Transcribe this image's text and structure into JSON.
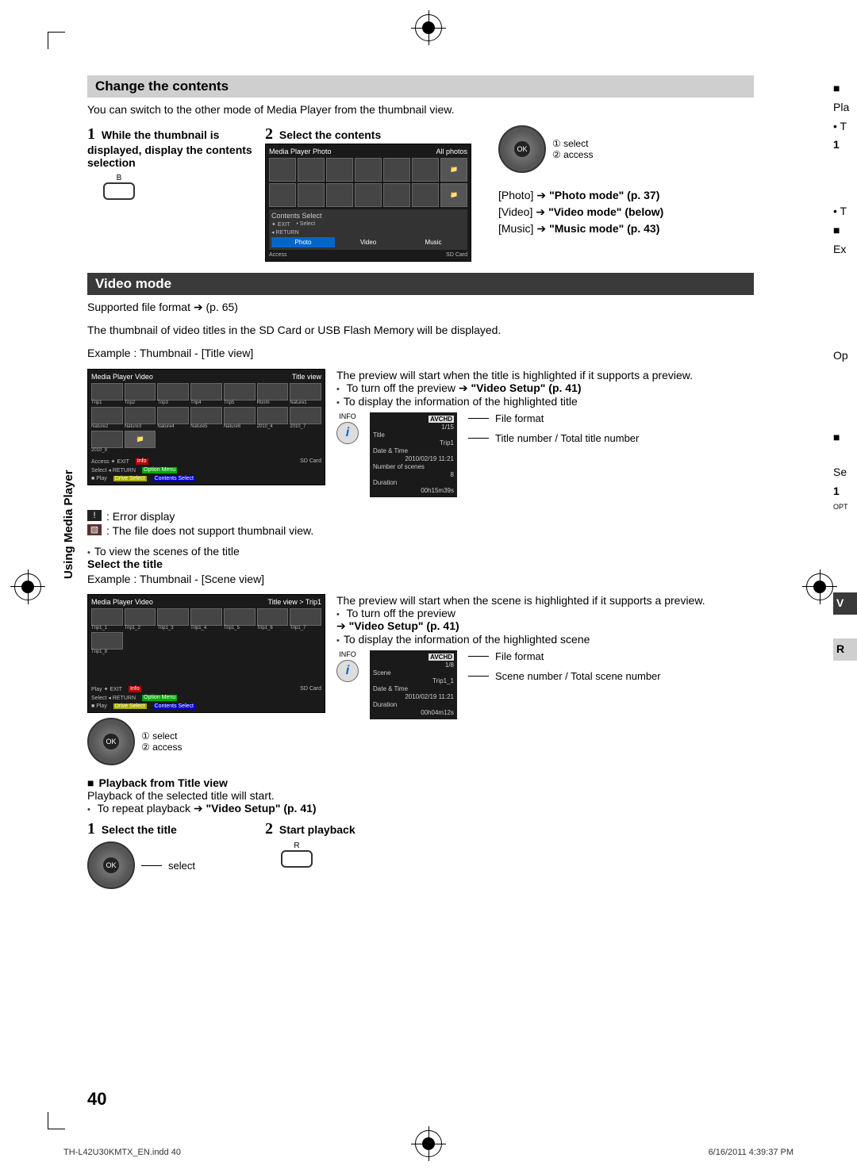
{
  "page_number": "40",
  "side_label": "Using Media Player",
  "footer_left": "TH-L42U30KMTX_EN.indd   40",
  "footer_right": "6/16/2011   4:39:37 PM",
  "change": {
    "title": "Change the contents",
    "intro": "You can switch to the other mode of Media Player from the thumbnail view.",
    "step1_num": "1",
    "step1_title": "While the thumbnail is displayed, display the contents selection",
    "step1_btn_label": "B",
    "step2_num": "2",
    "step2_title": "Select the contents",
    "ok_note1": "① select",
    "ok_note2": "② access",
    "mode_photo_left": "[Photo]",
    "mode_photo_right": "\"Photo mode\" (p. 37)",
    "mode_video_left": "[Video]",
    "mode_video_right": "\"Video mode\" (below)",
    "mode_music_left": "[Music]",
    "mode_music_right": "\"Music mode\" (p. 43)",
    "screen": {
      "hdr_left": "Media Player    Photo",
      "hdr_right": "All photos",
      "cs_label": "Contents Select",
      "tab_photo": "Photo",
      "tab_video": "Video",
      "tab_music": "Music",
      "strip_exit": "EXIT",
      "strip_select": "Select",
      "strip_return": "RETURN",
      "strip_access": "Access",
      "strip_sd": "SD Card"
    }
  },
  "video": {
    "title": "Video mode",
    "supported_line_1": "Supported file format ",
    "supported_line_2": " (p. 65)",
    "intro": "The thumbnail of video titles in the SD Card or USB Flash Memory will be displayed.",
    "example_title": "Example : Thumbnail - [Title view]",
    "preview_text": "The preview will start when the title is highlighted if it supports a preview.",
    "preview_off_1": "To turn off the preview ",
    "preview_off_2": "\"Video Setup\" (p. 41)",
    "disp_info": "To display the information of the highlighted title",
    "info_label": "INFO",
    "file_format": "File format",
    "title_num": "Title number / Total title number",
    "title_screen": {
      "hdr_left": "Media Player    Video",
      "hdr_right": "Title view",
      "labels": [
        "Trip1",
        "Trip2",
        "Trip3",
        "Trip4",
        "Trip5",
        "Room",
        "Nature1",
        "Nature2",
        "Nature3",
        "Nature4",
        "Nature5",
        "Nature6",
        "2010_4",
        "2010_7",
        "2010_9"
      ],
      "strip_access": "Access",
      "strip_select": "Select",
      "strip_exit": "EXIT",
      "strip_return": "RETURN",
      "strip_info": "Info",
      "strip_option": "Option Menu",
      "strip_drive": "Drive Select",
      "strip_contents": "Contents Select",
      "strip_sd": "SD Card",
      "strip_play": "Play"
    },
    "title_info": {
      "tag": "AVCHD",
      "count": "1/15",
      "k_title": "Title",
      "v_title": "Trip1",
      "k_date": "Date & Time",
      "v_date": "2010/02/19 11:21",
      "k_scenes": "Number of scenes",
      "v_scenes": "8",
      "k_dur": "Duration",
      "v_dur": "00h15m39s"
    },
    "legend_err_icon": "!",
    "legend_err": ": Error display",
    "legend_nothumb": ": The file does not support thumbnail view.",
    "to_view_scenes": "To view the scenes of the title",
    "select_title": "Select the title",
    "example_scene": "Example : Thumbnail - [Scene view]",
    "scene_preview": "The preview will start when the scene is highlighted if it supports a preview.",
    "scene_off_1": "To turn off the preview",
    "scene_off_2": "\"Video Setup\" (p. 41)",
    "scene_disp": "To display the information of the highlighted scene",
    "scene_screen": {
      "hdr_left": "Media Player    Video",
      "hdr_right": "Title view  >  Trip1",
      "labels": [
        "Trip1_1",
        "Trip1_2",
        "Trip1_3",
        "Trip1_4",
        "Trip1_5",
        "Trip1_6",
        "Trip1_7",
        "Trip1_8"
      ],
      "strip_play": "Play",
      "strip_select": "Select",
      "strip_exit": "EXIT",
      "strip_return": "RETURN",
      "strip_info": "Info",
      "strip_option": "Option Menu",
      "strip_drive": "Drive Select",
      "strip_contents": "Contents Select",
      "strip_sd": "SD Card",
      "strip_play2": "Play"
    },
    "scene_info": {
      "tag": "AVCHD",
      "count": "1/8",
      "k_scene": "Scene",
      "v_scene": "Trip1_1",
      "k_date": "Date & Time",
      "v_date": "2010/02/19 11:21",
      "k_dur": "Duration",
      "v_dur": "00h04m12s"
    },
    "scene_ff": "File format",
    "scene_num": "Scene number / Total scene number",
    "ok_sel": "① select",
    "ok_acc": "② access",
    "playback_hdr": "Playback from Title view",
    "playback_text": "Playback of the selected title will start.",
    "repeat_1": "To repeat playback ",
    "repeat_2": "\"Video Setup\" (p. 41)",
    "pb_step1_num": "1",
    "pb_step1": "Select the title",
    "pb_step2_num": "2",
    "pb_step2": "Start playback",
    "pb_select": "select",
    "pb_btn_label": "R"
  },
  "rt": {
    "pla": "Pla",
    "t1": "• T",
    "n1": "1",
    "t2": "• T",
    "ex": "Ex",
    "op": "Op",
    "se": "Se",
    "n1b": "1",
    "opt": "OPT",
    "v": "V",
    "r": "R"
  }
}
